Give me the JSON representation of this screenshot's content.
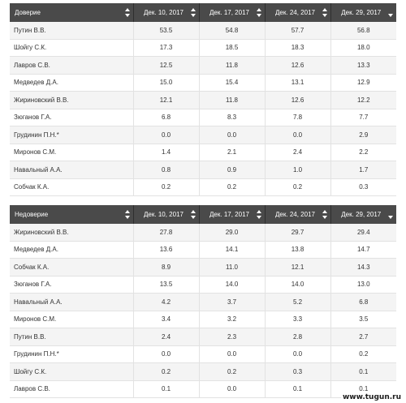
{
  "colors": {
    "header_bg": "#4a4a4a",
    "row_alt": "#f4f4f4"
  },
  "watermark": "www.tugun.ru",
  "tables": [
    {
      "headers": [
        "Доверие",
        "Дек. 10, 2017",
        "Дек. 17, 2017",
        "Дек. 24, 2017",
        "Дек. 29, 2017"
      ],
      "rows": [
        [
          "Путин В.В.",
          "53.5",
          "54.8",
          "57.7",
          "56.8"
        ],
        [
          "Шойгу С.К.",
          "17.3",
          "18.5",
          "18.3",
          "18.0"
        ],
        [
          "Лавров С.В.",
          "12.5",
          "11.8",
          "12.6",
          "13.3"
        ],
        [
          "Медведев Д.А.",
          "15.0",
          "15.4",
          "13.1",
          "12.9"
        ],
        [
          "Жириновский В.В.",
          "12.1",
          "11.8",
          "12.6",
          "12.2"
        ],
        [
          "Зюганов Г.А.",
          "6.8",
          "8.3",
          "7.8",
          "7.7"
        ],
        [
          "Грудинин П.Н.*",
          "0.0",
          "0.0",
          "0.0",
          "2.9"
        ],
        [
          "Миронов С.М.",
          "1.4",
          "2.1",
          "2.4",
          "2.2"
        ],
        [
          "Навальный А.А.",
          "0.8",
          "0.9",
          "1.0",
          "1.7"
        ],
        [
          "Собчак К.А.",
          "0.2",
          "0.2",
          "0.2",
          "0.3"
        ]
      ]
    },
    {
      "headers": [
        "Недоверие",
        "Дек. 10, 2017",
        "Дек. 17, 2017",
        "Дек. 24, 2017",
        "Дек. 29, 2017"
      ],
      "rows": [
        [
          "Жириновский В.В.",
          "27.8",
          "29.0",
          "29.7",
          "29.4"
        ],
        [
          "Медведев Д.А.",
          "13.6",
          "14.1",
          "13.8",
          "14.7"
        ],
        [
          "Собчак К.А.",
          "8.9",
          "11.0",
          "12.1",
          "14.3"
        ],
        [
          "Зюганов Г.А.",
          "13.5",
          "14.0",
          "14.0",
          "13.0"
        ],
        [
          "Навальный А.А.",
          "4.2",
          "3.7",
          "5.2",
          "6.8"
        ],
        [
          "Миронов С.М.",
          "3.4",
          "3.2",
          "3.3",
          "3.5"
        ],
        [
          "Путин В.В.",
          "2.4",
          "2.3",
          "2.8",
          "2.7"
        ],
        [
          "Грудинин П.Н.*",
          "0.0",
          "0.0",
          "0.0",
          "0.2"
        ],
        [
          "Шойгу С.К.",
          "0.2",
          "0.2",
          "0.3",
          "0.1"
        ],
        [
          "Лавров С.В.",
          "0.1",
          "0.0",
          "0.1",
          "0.1"
        ]
      ]
    }
  ]
}
